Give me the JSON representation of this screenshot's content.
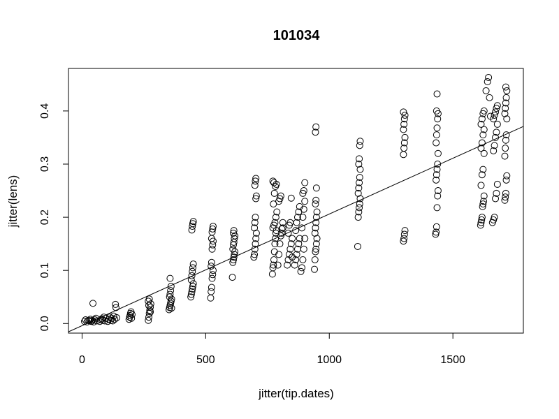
{
  "chart_data": {
    "type": "scatter",
    "title": "101034",
    "xlabel": "jitter(tip.dates)",
    "ylabel": "jitter(lens)",
    "xlim": [
      -55,
      1785
    ],
    "ylim": [
      -0.018,
      0.48
    ],
    "x_ticks": [
      0,
      500,
      1000,
      1500
    ],
    "x_tick_labels": [
      "0",
      "500",
      "1000",
      "1500"
    ],
    "y_ticks": [
      0.0,
      0.1,
      0.2,
      0.3,
      0.4
    ],
    "y_tick_labels": [
      "0.0",
      "0.1",
      "0.2",
      "0.3",
      "0.4"
    ],
    "grid": false,
    "legend": "none",
    "marker": "open circle",
    "regression_line": {
      "intercept": -0.004,
      "slope": 0.00021
    },
    "points": [
      [
        10,
        0.004
      ],
      [
        14,
        0.007
      ],
      [
        20,
        0.003
      ],
      [
        25,
        0.006
      ],
      [
        30,
        0.005
      ],
      [
        34,
        0.008
      ],
      [
        38,
        0.004
      ],
      [
        41,
        0.006
      ],
      [
        44,
        0.038
      ],
      [
        47,
        0.003
      ],
      [
        52,
        0.007
      ],
      [
        56,
        0.01
      ],
      [
        60,
        0.005
      ],
      [
        72,
        0.004
      ],
      [
        76,
        0.007
      ],
      [
        80,
        0.009
      ],
      [
        84,
        0.006
      ],
      [
        88,
        0.012
      ],
      [
        92,
        0.005
      ],
      [
        96,
        0.01
      ],
      [
        104,
        0.004
      ],
      [
        108,
        0.008
      ],
      [
        112,
        0.012
      ],
      [
        116,
        0.006
      ],
      [
        120,
        0.01
      ],
      [
        124,
        0.005
      ],
      [
        128,
        0.014
      ],
      [
        132,
        0.008
      ],
      [
        135,
        0.036
      ],
      [
        137,
        0.03
      ],
      [
        140,
        0.011
      ],
      [
        190,
        0.008
      ],
      [
        192,
        0.012
      ],
      [
        194,
        0.015
      ],
      [
        196,
        0.019
      ],
      [
        198,
        0.022
      ],
      [
        200,
        0.01
      ],
      [
        202,
        0.017
      ],
      [
        268,
        0.006
      ],
      [
        270,
        0.012
      ],
      [
        272,
        0.019
      ],
      [
        274,
        0.025
      ],
      [
        276,
        0.031
      ],
      [
        278,
        0.037
      ],
      [
        268,
        0.042
      ],
      [
        272,
        0.046
      ],
      [
        276,
        0.022
      ],
      [
        270,
        0.034
      ],
      [
        352,
        0.026
      ],
      [
        354,
        0.03
      ],
      [
        356,
        0.034
      ],
      [
        358,
        0.038
      ],
      [
        360,
        0.042
      ],
      [
        362,
        0.046
      ],
      [
        354,
        0.05
      ],
      [
        356,
        0.055
      ],
      [
        358,
        0.062
      ],
      [
        360,
        0.07
      ],
      [
        356,
        0.085
      ],
      [
        362,
        0.029
      ],
      [
        440,
        0.05
      ],
      [
        442,
        0.055
      ],
      [
        444,
        0.06
      ],
      [
        446,
        0.065
      ],
      [
        448,
        0.07
      ],
      [
        450,
        0.075
      ],
      [
        442,
        0.082
      ],
      [
        444,
        0.09
      ],
      [
        446,
        0.098
      ],
      [
        448,
        0.105
      ],
      [
        450,
        0.112
      ],
      [
        444,
        0.176
      ],
      [
        446,
        0.183
      ],
      [
        448,
        0.188
      ],
      [
        450,
        0.192
      ],
      [
        520,
        0.048
      ],
      [
        522,
        0.06
      ],
      [
        524,
        0.068
      ],
      [
        526,
        0.085
      ],
      [
        528,
        0.092
      ],
      [
        530,
        0.1
      ],
      [
        522,
        0.108
      ],
      [
        524,
        0.115
      ],
      [
        526,
        0.14
      ],
      [
        528,
        0.148
      ],
      [
        530,
        0.155
      ],
      [
        524,
        0.16
      ],
      [
        526,
        0.172
      ],
      [
        528,
        0.178
      ],
      [
        530,
        0.183
      ],
      [
        608,
        0.087
      ],
      [
        610,
        0.115
      ],
      [
        612,
        0.12
      ],
      [
        614,
        0.125
      ],
      [
        616,
        0.13
      ],
      [
        618,
        0.135
      ],
      [
        610,
        0.14
      ],
      [
        612,
        0.148
      ],
      [
        614,
        0.153
      ],
      [
        616,
        0.16
      ],
      [
        618,
        0.165
      ],
      [
        612,
        0.17
      ],
      [
        614,
        0.175
      ],
      [
        695,
        0.125
      ],
      [
        697,
        0.13
      ],
      [
        699,
        0.14
      ],
      [
        701,
        0.15
      ],
      [
        703,
        0.16
      ],
      [
        705,
        0.17
      ],
      [
        697,
        0.18
      ],
      [
        699,
        0.19
      ],
      [
        701,
        0.2
      ],
      [
        703,
        0.235
      ],
      [
        705,
        0.24
      ],
      [
        699,
        0.26
      ],
      [
        701,
        0.268
      ],
      [
        703,
        0.273
      ],
      [
        770,
        0.093
      ],
      [
        772,
        0.105
      ],
      [
        774,
        0.11
      ],
      [
        776,
        0.12
      ],
      [
        778,
        0.135
      ],
      [
        780,
        0.15
      ],
      [
        782,
        0.16
      ],
      [
        784,
        0.17
      ],
      [
        786,
        0.175
      ],
      [
        772,
        0.18
      ],
      [
        776,
        0.185
      ],
      [
        780,
        0.19
      ],
      [
        784,
        0.2
      ],
      [
        788,
        0.21
      ],
      [
        774,
        0.225
      ],
      [
        778,
        0.245
      ],
      [
        782,
        0.258
      ],
      [
        786,
        0.262
      ],
      [
        772,
        0.268
      ],
      [
        776,
        0.265
      ],
      [
        792,
        0.11
      ],
      [
        796,
        0.13
      ],
      [
        800,
        0.15
      ],
      [
        804,
        0.165
      ],
      [
        808,
        0.178
      ],
      [
        812,
        0.19
      ],
      [
        796,
        0.23
      ],
      [
        800,
        0.235
      ],
      [
        804,
        0.24
      ],
      [
        808,
        0.17
      ],
      [
        812,
        0.18
      ],
      [
        830,
        0.11
      ],
      [
        834,
        0.12
      ],
      [
        838,
        0.13
      ],
      [
        842,
        0.14
      ],
      [
        846,
        0.15
      ],
      [
        850,
        0.16
      ],
      [
        834,
        0.17
      ],
      [
        838,
        0.185
      ],
      [
        842,
        0.19
      ],
      [
        846,
        0.236
      ],
      [
        850,
        0.125
      ],
      [
        860,
        0.11
      ],
      [
        864,
        0.12
      ],
      [
        868,
        0.13
      ],
      [
        872,
        0.14
      ],
      [
        876,
        0.15
      ],
      [
        880,
        0.16
      ],
      [
        864,
        0.175
      ],
      [
        868,
        0.19
      ],
      [
        872,
        0.2
      ],
      [
        876,
        0.21
      ],
      [
        880,
        0.22
      ],
      [
        885,
        0.098
      ],
      [
        889,
        0.105
      ],
      [
        893,
        0.12
      ],
      [
        897,
        0.14
      ],
      [
        901,
        0.16
      ],
      [
        889,
        0.18
      ],
      [
        893,
        0.2
      ],
      [
        897,
        0.215
      ],
      [
        901,
        0.23
      ],
      [
        893,
        0.245
      ],
      [
        897,
        0.25
      ],
      [
        901,
        0.265
      ],
      [
        940,
        0.102
      ],
      [
        942,
        0.12
      ],
      [
        944,
        0.135
      ],
      [
        946,
        0.14
      ],
      [
        948,
        0.15
      ],
      [
        950,
        0.16
      ],
      [
        942,
        0.17
      ],
      [
        944,
        0.18
      ],
      [
        946,
        0.19
      ],
      [
        948,
        0.2
      ],
      [
        950,
        0.21
      ],
      [
        944,
        0.225
      ],
      [
        946,
        0.232
      ],
      [
        948,
        0.255
      ],
      [
        944,
        0.36
      ],
      [
        946,
        0.37
      ],
      [
        1115,
        0.145
      ],
      [
        1117,
        0.2
      ],
      [
        1119,
        0.21
      ],
      [
        1121,
        0.218
      ],
      [
        1123,
        0.225
      ],
      [
        1125,
        0.235
      ],
      [
        1117,
        0.245
      ],
      [
        1119,
        0.255
      ],
      [
        1121,
        0.265
      ],
      [
        1123,
        0.275
      ],
      [
        1125,
        0.29
      ],
      [
        1119,
        0.3
      ],
      [
        1121,
        0.31
      ],
      [
        1123,
        0.335
      ],
      [
        1125,
        0.343
      ],
      [
        1300,
        0.155
      ],
      [
        1302,
        0.16
      ],
      [
        1304,
        0.168
      ],
      [
        1306,
        0.175
      ],
      [
        1300,
        0.318
      ],
      [
        1302,
        0.33
      ],
      [
        1304,
        0.34
      ],
      [
        1306,
        0.35
      ],
      [
        1300,
        0.365
      ],
      [
        1302,
        0.375
      ],
      [
        1304,
        0.385
      ],
      [
        1306,
        0.392
      ],
      [
        1300,
        0.398
      ],
      [
        1430,
        0.168
      ],
      [
        1432,
        0.172
      ],
      [
        1434,
        0.182
      ],
      [
        1436,
        0.218
      ],
      [
        1438,
        0.24
      ],
      [
        1440,
        0.25
      ],
      [
        1432,
        0.27
      ],
      [
        1434,
        0.28
      ],
      [
        1436,
        0.29
      ],
      [
        1438,
        0.3
      ],
      [
        1440,
        0.32
      ],
      [
        1432,
        0.34
      ],
      [
        1434,
        0.355
      ],
      [
        1436,
        0.368
      ],
      [
        1438,
        0.385
      ],
      [
        1440,
        0.395
      ],
      [
        1434,
        0.4
      ],
      [
        1436,
        0.432
      ],
      [
        1612,
        0.185
      ],
      [
        1614,
        0.19
      ],
      [
        1616,
        0.195
      ],
      [
        1618,
        0.2
      ],
      [
        1620,
        0.22
      ],
      [
        1622,
        0.225
      ],
      [
        1624,
        0.23
      ],
      [
        1626,
        0.24
      ],
      [
        1614,
        0.26
      ],
      [
        1618,
        0.28
      ],
      [
        1622,
        0.29
      ],
      [
        1626,
        0.32
      ],
      [
        1614,
        0.33
      ],
      [
        1618,
        0.34
      ],
      [
        1622,
        0.355
      ],
      [
        1626,
        0.365
      ],
      [
        1614,
        0.375
      ],
      [
        1618,
        0.385
      ],
      [
        1622,
        0.395
      ],
      [
        1626,
        0.4
      ],
      [
        1634,
        0.438
      ],
      [
        1640,
        0.455
      ],
      [
        1644,
        0.463
      ],
      [
        1648,
        0.425
      ],
      [
        1652,
        0.39
      ],
      [
        1660,
        0.19
      ],
      [
        1664,
        0.195
      ],
      [
        1668,
        0.2
      ],
      [
        1672,
        0.235
      ],
      [
        1676,
        0.245
      ],
      [
        1680,
        0.262
      ],
      [
        1664,
        0.325
      ],
      [
        1668,
        0.335
      ],
      [
        1672,
        0.35
      ],
      [
        1676,
        0.36
      ],
      [
        1680,
        0.375
      ],
      [
        1664,
        0.385
      ],
      [
        1668,
        0.392
      ],
      [
        1672,
        0.398
      ],
      [
        1676,
        0.405
      ],
      [
        1680,
        0.41
      ],
      [
        1710,
        0.232
      ],
      [
        1712,
        0.238
      ],
      [
        1714,
        0.245
      ],
      [
        1716,
        0.27
      ],
      [
        1718,
        0.278
      ],
      [
        1710,
        0.315
      ],
      [
        1712,
        0.33
      ],
      [
        1714,
        0.345
      ],
      [
        1716,
        0.355
      ],
      [
        1718,
        0.385
      ],
      [
        1710,
        0.395
      ],
      [
        1712,
        0.405
      ],
      [
        1714,
        0.415
      ],
      [
        1716,
        0.425
      ],
      [
        1718,
        0.438
      ],
      [
        1714,
        0.445
      ]
    ]
  }
}
